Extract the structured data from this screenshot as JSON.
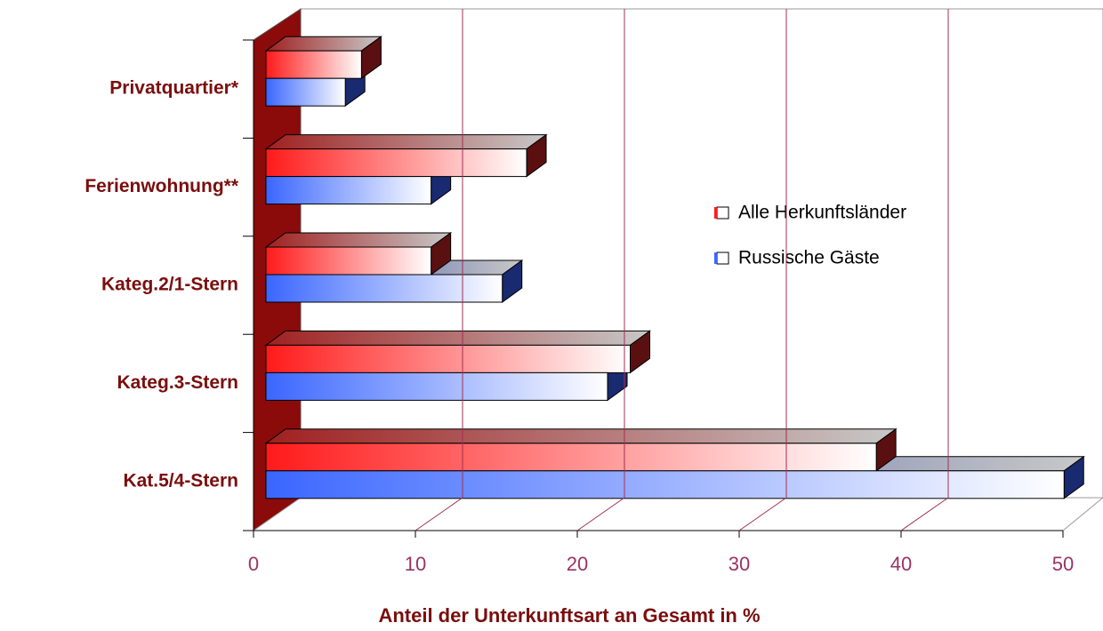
{
  "chart_data": {
    "type": "bar3d",
    "categories": [
      "Privatquartier*",
      "Ferienwohnung**",
      "Kateg.2/1-Stern",
      "Kateg.3-Stern",
      "Kat.5/4-Stern"
    ],
    "series": [
      {
        "name": "Alle Herkunftsländer",
        "color": "#ff1a1a",
        "values": [
          5.9,
          16.1,
          10.2,
          22.5,
          37.7
        ]
      },
      {
        "name": "Russische Gäste",
        "color": "#3a66ff",
        "values": [
          4.9,
          10.2,
          14.6,
          21.1,
          49.3
        ]
      }
    ],
    "xlabel": "Anteil der Unterkunftsart an Gesamt in %",
    "xlim": [
      0,
      50
    ],
    "xticks": [
      0,
      10,
      20,
      30,
      40,
      50
    ],
    "grid": true
  }
}
